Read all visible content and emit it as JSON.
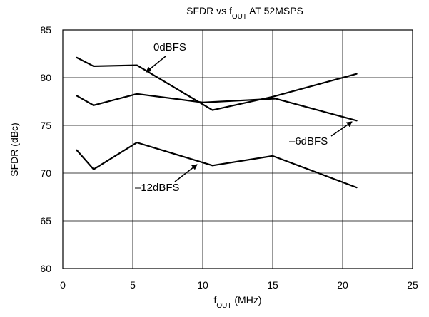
{
  "chart_data": {
    "type": "line",
    "title": {
      "main": "SFDR vs f",
      "sub": "OUT",
      "suffix": " AT 52MSPS"
    },
    "xlabel": {
      "main": "f",
      "sub": "OUT",
      "suffix": " (MHz)"
    },
    "ylabel": "SFDR (dBc)",
    "xlim": [
      0,
      25
    ],
    "ylim": [
      60,
      85
    ],
    "x_ticks": [
      "0",
      "5",
      "10",
      "15",
      "20",
      "25"
    ],
    "y_ticks": [
      "60",
      "65",
      "70",
      "75",
      "80",
      "85"
    ],
    "grid": true,
    "colors": {
      "line": "#000000",
      "grid": "#000000",
      "background": "#ffffff"
    },
    "series": [
      {
        "name": "0dBFS",
        "points": [
          [
            1.0,
            82.1
          ],
          [
            2.2,
            81.2
          ],
          [
            5.3,
            81.3
          ],
          [
            10.7,
            76.6
          ],
          [
            15.0,
            78.0
          ],
          [
            21.0,
            80.4
          ]
        ]
      },
      {
        "name": "–6dBFS",
        "points": [
          [
            1.0,
            78.1
          ],
          [
            2.2,
            77.1
          ],
          [
            5.3,
            78.3
          ],
          [
            10.0,
            77.4
          ],
          [
            15.2,
            77.8
          ],
          [
            21.0,
            75.5
          ]
        ]
      },
      {
        "name": "–12dBFS",
        "points": [
          [
            1.0,
            72.4
          ],
          [
            2.2,
            70.4
          ],
          [
            5.3,
            73.2
          ],
          [
            10.7,
            70.8
          ],
          [
            15.0,
            71.8
          ],
          [
            21.0,
            68.5
          ]
        ]
      }
    ]
  }
}
